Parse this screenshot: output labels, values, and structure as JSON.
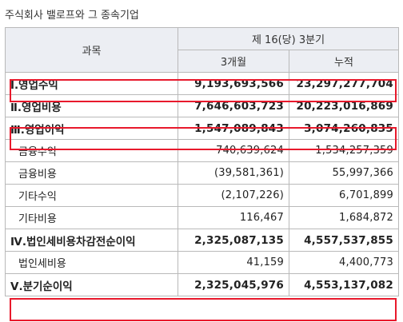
{
  "caption": "주식회사 밸로프와 그 종속기업",
  "header": {
    "item": "과목",
    "period": "제 16(당) 3분기",
    "col_q": "3개월",
    "col_cum": "누적"
  },
  "rows": [
    {
      "label": "Ⅰ.영업수익",
      "q": "9,193,693,566",
      "cum": "23,297,277,704"
    },
    {
      "label": "Ⅱ.영업비용",
      "q": "7,646,603,723",
      "cum": "20,223,016,869"
    },
    {
      "label": "Ⅲ.영업이익",
      "q": "1,547,089,843",
      "cum": "3,074,260,835"
    },
    {
      "label": "금융수익",
      "q": "740,639,624",
      "cum": "1,534,257,359"
    },
    {
      "label": "금융비용",
      "q": "(39,581,361)",
      "cum": "55,997,366"
    },
    {
      "label": "기타수익",
      "q": "(2,107,226)",
      "cum": "6,701,899"
    },
    {
      "label": "기타비용",
      "q": "116,467",
      "cum": "1,684,872"
    },
    {
      "label": "Ⅳ.법인세비용차감전순이익",
      "q": "2,325,087,135",
      "cum": "4,557,537,855"
    },
    {
      "label": "법인세비용",
      "q": "41,159",
      "cum": "4,400,773"
    },
    {
      "label": "Ⅴ.분기순이익",
      "q": "2,325,045,976",
      "cum": "4,553,137,082"
    }
  ],
  "highlight_color": "#e8192c"
}
